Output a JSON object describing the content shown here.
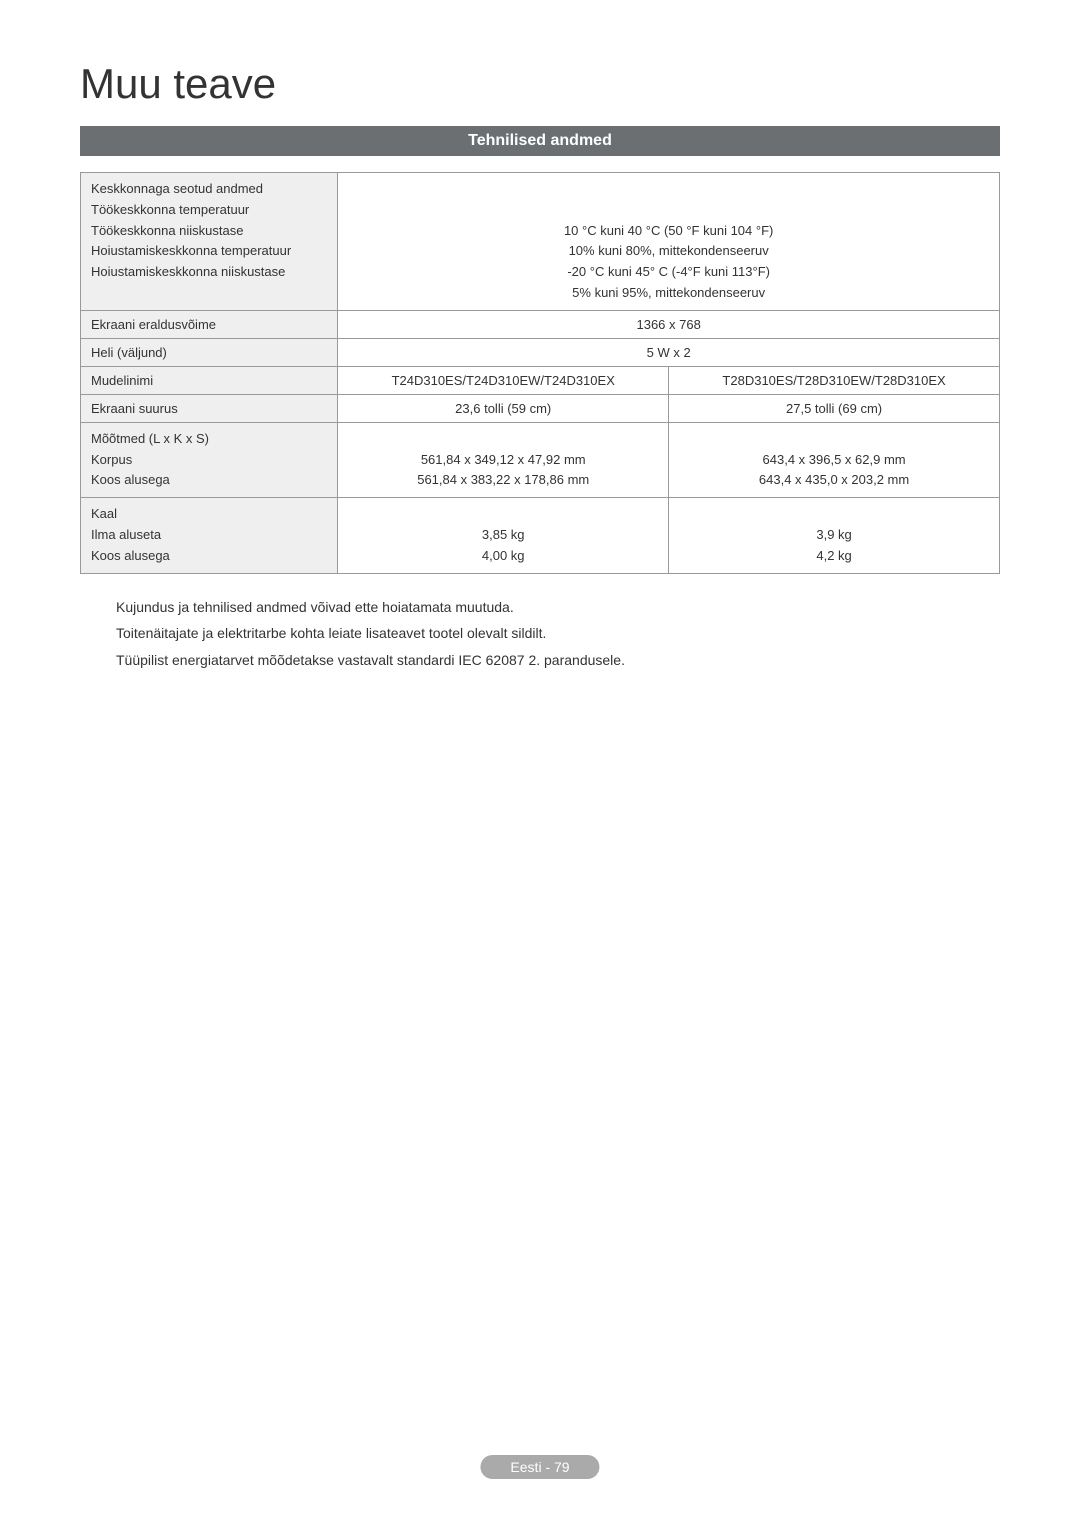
{
  "title": "Muu teave",
  "section_header": "Tehnilised andmed",
  "table": {
    "env_row": {
      "labels": [
        "Keskkonnaga seotud andmed",
        "Töökeskkonna temperatuur",
        "Töökeskkonna niiskustase",
        "Hoiustamiskeskkonna temperatuur",
        "Hoiustamiskeskkonna niiskustase"
      ],
      "values": [
        "10 °C kuni 40 °C (50 °F kuni 104 °F)",
        "10% kuni 80%, mittekondenseeruv",
        "-20 °C kuni 45° C (-4°F kuni 113°F)",
        "5% kuni 95%, mittekondenseeruv"
      ]
    },
    "resolution": {
      "label": "Ekraani eraldusvõime",
      "value": "1366 x 768"
    },
    "sound": {
      "label": "Heli (väljund)",
      "value": "5 W x 2"
    },
    "model": {
      "label": "Mudelinimi",
      "col1": "T24D310ES/T24D310EW/T24D310EX",
      "col2": "T28D310ES/T28D310EW/T28D310EX"
    },
    "screen_size": {
      "label": "Ekraani suurus",
      "col1": "23,6 tolli (59 cm)",
      "col2": "27,5 tolli (69 cm)"
    },
    "dimensions": {
      "labels": [
        "Mõõtmed (L x K x S)",
        "Korpus",
        "Koos alusega"
      ],
      "col1": [
        "561,84 x 349,12 x 47,92 mm",
        "561,84 x 383,22 x 178,86 mm"
      ],
      "col2": [
        "643,4 x 396,5 x 62,9 mm",
        "643,4 x 435,0 x 203,2 mm"
      ]
    },
    "weight": {
      "labels": [
        "Kaal",
        "Ilma aluseta",
        "Koos alusega"
      ],
      "col1": [
        "3,85 kg",
        "4,00 kg"
      ],
      "col2": [
        "3,9 kg",
        "4,2 kg"
      ]
    }
  },
  "notes": [
    "Kujundus ja tehnilised andmed võivad ette hoiatamata muutuda.",
    "Toitenäitajate ja elektritarbe kohta leiate lisateavet tootel olevalt sildilt.",
    "Tüüpilist energiatarvet mõõdetakse vastavalt standardi IEC 62087 2. parandusele."
  ],
  "footer": "Eesti - 79"
}
